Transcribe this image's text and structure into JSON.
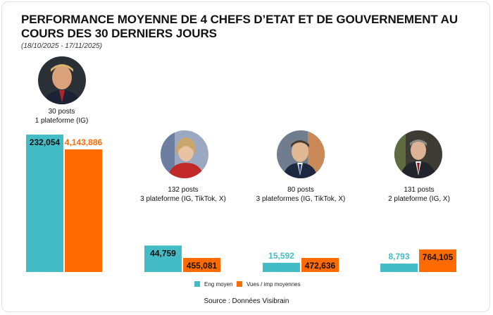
{
  "header": {
    "title": "PERFORMANCE MOYENNE DE 4 CHEFS D’ETAT ET DE GOUVERNEMENT AU COURS DES 30 DERNIERS JOURS",
    "period": "(18/10/2025 - 17/11/2025)"
  },
  "leaders": [
    {
      "posts": "30 posts",
      "platforms": "1 plateforme (IG)",
      "photo": "portrait-photo"
    },
    {
      "posts": "132 posts",
      "platforms": "3 plateforme (IG, TikTok, X)",
      "photo": "portrait-photo"
    },
    {
      "posts": "80 posts",
      "platforms": "3 plateformes (IG, TikTok, X)",
      "photo": "portrait-photo"
    },
    {
      "posts": "131 posts",
      "platforms": "2 plateforme (IG, X)",
      "photo": "portrait-photo"
    }
  ],
  "chart_data": {
    "type": "bar",
    "categories": [
      "",
      "",
      "",
      ""
    ],
    "series": [
      {
        "name": "Eng moyen",
        "values": [
          232054,
          44759,
          15592,
          8793
        ],
        "labels": [
          "232,054",
          "44,759",
          "15,592",
          "8,793"
        ],
        "color": "#44BCC6"
      },
      {
        "name": "Vues / imp moyennes",
        "values": [
          4143886,
          455081,
          472636,
          764105
        ],
        "labels": [
          "4,143,886",
          "455,081",
          "472,636",
          "764,105"
        ],
        "color": "#FF6B00"
      }
    ],
    "xlabel": "",
    "ylabel": "",
    "legend_position": "bottom",
    "grid": false
  },
  "legend": {
    "eng_label": "Eng moyen",
    "views_label": "Vues / imp moyennes"
  },
  "footer": {
    "source": "Source : Données Visibrain"
  },
  "colors": {
    "teal": "#44BCC6",
    "orange": "#FF6B00"
  }
}
